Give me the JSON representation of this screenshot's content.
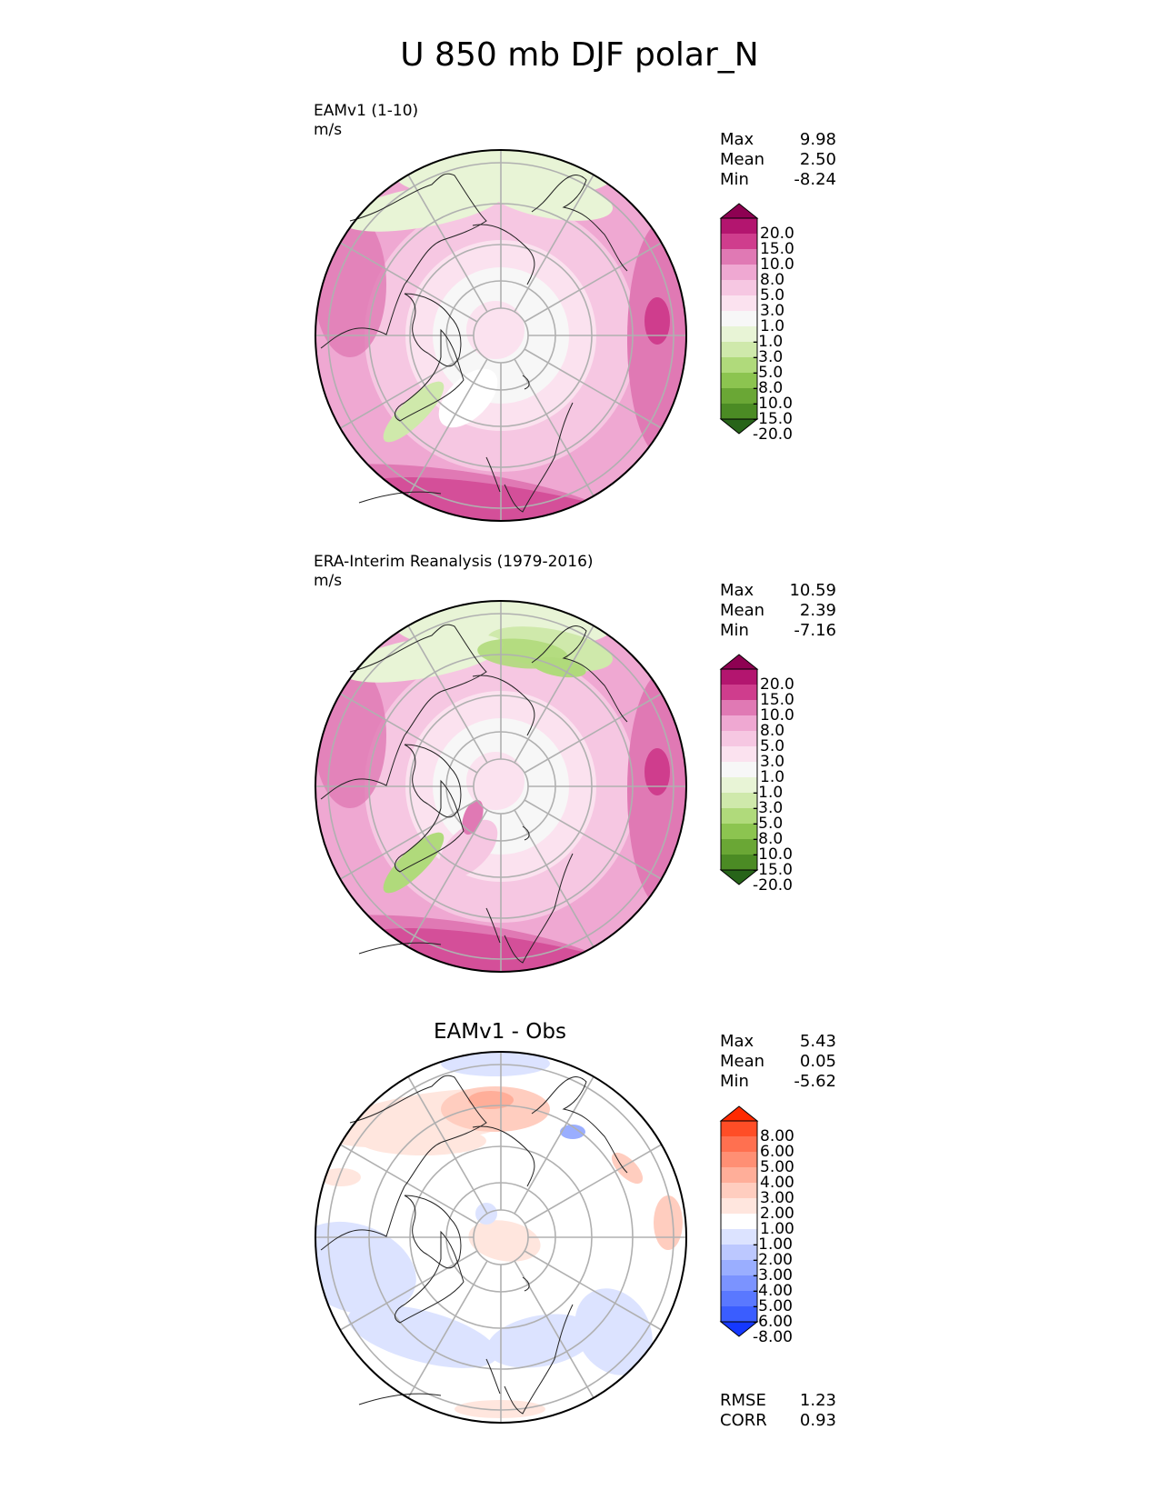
{
  "title": "U 850 mb DJF polar_N",
  "chart_data": [
    {
      "type": "heatmap",
      "projection": "polar north",
      "title": "EAMv1 (1-10)",
      "units": "m/s",
      "stats": [
        {
          "label": "Max",
          "value": "9.98"
        },
        {
          "label": "Mean",
          "value": "2.50"
        },
        {
          "label": "Min",
          "value": "-8.24"
        }
      ],
      "colorbar": {
        "levels": [
          "20.0",
          "15.0",
          "10.0",
          "8.0",
          "5.0",
          "3.0",
          "1.0",
          "-1.0",
          "-3.0",
          "-5.0",
          "-8.0",
          "-10.0",
          "-15.0",
          "-20.0"
        ],
        "colors": [
          "#8e0152",
          "#b3156f",
          "#cf3d8d",
          "#e079b4",
          "#efa8d2",
          "#f6c7e2",
          "#fbe2ef",
          "#f7f7f7",
          "#e8f4d6",
          "#cfe9ab",
          "#b0da7b",
          "#8cc450",
          "#6aa735",
          "#4b8b24",
          "#276419"
        ]
      }
    },
    {
      "type": "heatmap",
      "projection": "polar north",
      "title": "ERA-Interim Reanalysis (1979-2016)",
      "units": "m/s",
      "stats": [
        {
          "label": "Max",
          "value": "10.59"
        },
        {
          "label": "Mean",
          "value": "2.39"
        },
        {
          "label": "Min",
          "value": "-7.16"
        }
      ],
      "colorbar": {
        "levels": [
          "20.0",
          "15.0",
          "10.0",
          "8.0",
          "5.0",
          "3.0",
          "1.0",
          "-1.0",
          "-3.0",
          "-5.0",
          "-8.0",
          "-10.0",
          "-15.0",
          "-20.0"
        ],
        "colors": [
          "#8e0152",
          "#b3156f",
          "#cf3d8d",
          "#e079b4",
          "#efa8d2",
          "#f6c7e2",
          "#fbe2ef",
          "#f7f7f7",
          "#e8f4d6",
          "#cfe9ab",
          "#b0da7b",
          "#8cc450",
          "#6aa735",
          "#4b8b24",
          "#276419"
        ]
      }
    },
    {
      "type": "heatmap",
      "projection": "polar north",
      "title": "EAMv1 - Obs",
      "stats": [
        {
          "label": "Max",
          "value": "5.43"
        },
        {
          "label": "Mean",
          "value": "0.05"
        },
        {
          "label": "Min",
          "value": "-5.62"
        }
      ],
      "metrics": [
        {
          "label": "RMSE",
          "value": "1.23"
        },
        {
          "label": "CORR",
          "value": "0.93"
        }
      ],
      "colorbar": {
        "levels": [
          "8.00",
          "6.00",
          "5.00",
          "4.00",
          "3.00",
          "2.00",
          "1.00",
          "-1.00",
          "-2.00",
          "-3.00",
          "-4.00",
          "-5.00",
          "-6.00",
          "-8.00"
        ],
        "colors": [
          "#ff2a00",
          "#ff4d26",
          "#ff7050",
          "#ff8f74",
          "#ffae99",
          "#ffcdbf",
          "#ffe6de",
          "#ffffff",
          "#dce3ff",
          "#bcc8ff",
          "#9aaeff",
          "#7b93ff",
          "#5a78ff",
          "#3a5dff",
          "#1538ff"
        ]
      }
    }
  ]
}
